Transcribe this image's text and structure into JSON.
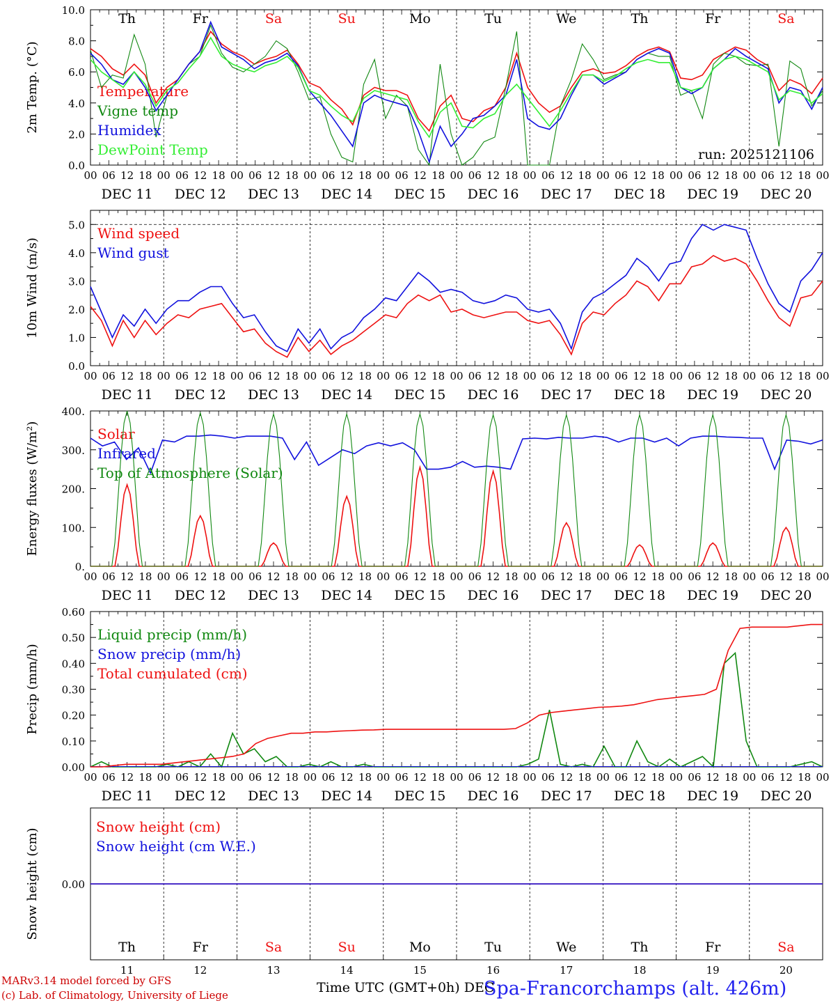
{
  "chart_data": {
    "type": "line",
    "title": "Spa-Francorchamps (alt. 426m)",
    "run": "run: 2025121106",
    "xlabel": "Time UTC (GMT+0h) DEC",
    "credits": [
      "MARv3.14 model forced by GFS",
      "(c) Lab. of Climatology, University of Liege"
    ],
    "hour_ticks": [
      "00",
      "06",
      "12",
      "18"
    ],
    "last_hour_tick": "00",
    "dates": [
      "DEC 11",
      "DEC 12",
      "DEC 13",
      "DEC 14",
      "DEC 15",
      "DEC 16",
      "DEC 17",
      "DEC 18",
      "DEC 19",
      "DEC 20"
    ],
    "day_numbers": [
      "11",
      "12",
      "13",
      "14",
      "15",
      "16",
      "17",
      "18",
      "19",
      "20"
    ],
    "weekdays": [
      "Th",
      "Fr",
      "Sa",
      "Su",
      "Mo",
      "Tu",
      "We",
      "Th",
      "Fr",
      "Sa"
    ],
    "weekend_days": [
      "Sa",
      "Su"
    ],
    "colors": {
      "red": "#ee1111",
      "green": "#118811",
      "blue": "#1111dd",
      "lightgreen": "#33ee33",
      "weekend": "#ee1111"
    },
    "panels": [
      {
        "ylabel": "2m Temp. (°C)",
        "ylim": [
          0,
          10
        ],
        "yticks": [
          0,
          2,
          4,
          6,
          8,
          10
        ],
        "ytick_labels": [
          "0.0",
          "2.0",
          "4.0",
          "6.0",
          "8.0",
          "10.0"
        ],
        "x_hours": [
          0,
          3,
          6,
          9,
          12,
          15,
          18,
          21,
          24,
          27,
          30,
          33,
          36,
          39,
          42,
          45,
          48,
          51,
          54,
          57,
          60,
          63,
          66,
          69,
          72,
          75,
          78,
          81,
          84,
          87,
          90,
          93,
          96,
          99,
          102,
          105,
          108,
          111,
          114,
          117,
          120,
          123,
          126,
          129,
          132,
          135,
          138,
          141,
          144,
          147,
          150,
          153,
          156,
          159,
          162,
          165,
          168,
          171,
          174,
          177,
          180,
          183,
          186,
          189,
          192,
          195,
          198,
          201,
          204,
          207,
          210,
          213,
          216,
          219,
          222,
          225,
          228,
          231,
          234,
          237,
          240
        ],
        "series": [
          {
            "name": "Temperature",
            "color": "#ee1111",
            "values": [
              7.5,
              7.0,
              6.2,
              5.8,
              6.5,
              5.8,
              4.0,
              5.0,
              5.5,
              6.5,
              7.3,
              8.6,
              7.8,
              7.3,
              7.0,
              6.5,
              6.8,
              7.0,
              7.4,
              6.5,
              5.3,
              5.0,
              4.2,
              3.6,
              2.6,
              4.5,
              5.0,
              4.8,
              4.8,
              4.5,
              3.0,
              2.2,
              3.8,
              4.5,
              3.0,
              2.8,
              3.5,
              3.8,
              5.0,
              7.2,
              5.0,
              4.0,
              3.4,
              3.8,
              5.0,
              6.0,
              6.2,
              5.9,
              6.0,
              6.4,
              7.0,
              7.4,
              7.6,
              7.3,
              5.6,
              5.5,
              5.8,
              6.8,
              7.2,
              7.6,
              7.4,
              6.8,
              6.4,
              4.8,
              5.5,
              5.2,
              4.6,
              5.6
            ]
          },
          {
            "name": "Vigne temp",
            "color": "#118811",
            "values": [
              7.4,
              5.0,
              5.8,
              5.6,
              8.4,
              6.5,
              1.8,
              4.5,
              5.5,
              6.5,
              7.0,
              9.0,
              7.2,
              6.3,
              6.0,
              6.5,
              7.0,
              8.0,
              7.5,
              6.0,
              4.2,
              4.4,
              2.0,
              0.5,
              0.2,
              5.2,
              6.8,
              3.0,
              4.5,
              3.8,
              1.0,
              0.0,
              6.5,
              2.0,
              0.0,
              0.5,
              1.5,
              1.8,
              5.0,
              8.6,
              0.0,
              0.0,
              0.0,
              3.8,
              5.5,
              7.8,
              6.8,
              5.5,
              5.8,
              6.0,
              6.8,
              7.2,
              7.0,
              7.0,
              4.5,
              4.8,
              3.0,
              6.5,
              7.2,
              7.0,
              6.5,
              6.4,
              6.5,
              1.2,
              6.7,
              6.2,
              3.8,
              4.8
            ]
          },
          {
            "name": "Humidex",
            "color": "#1111dd",
            "values": [
              7.2,
              6.5,
              5.5,
              5.2,
              6.0,
              5.0,
              3.5,
              4.5,
              5.5,
              6.5,
              7.3,
              9.2,
              7.6,
              7.2,
              6.8,
              6.2,
              6.6,
              6.8,
              7.2,
              6.4,
              4.8,
              4.0,
              3.2,
              2.2,
              1.2,
              4.0,
              4.5,
              4.2,
              4.0,
              3.8,
              2.2,
              0.2,
              2.5,
              1.2,
              2.0,
              3.0,
              3.2,
              3.8,
              4.5,
              6.8,
              3.0,
              2.5,
              2.3,
              3.0,
              4.5,
              5.8,
              5.8,
              5.2,
              5.6,
              6.0,
              6.8,
              7.2,
              7.5,
              7.2,
              5.0,
              4.6,
              5.0,
              6.2,
              6.8,
              7.5,
              7.0,
              6.6,
              6.2,
              4.0,
              5.0,
              4.8,
              3.6,
              5.0
            ]
          },
          {
            "name": "DewPoint Temp",
            "color": "#33ee33",
            "values": [
              6.8,
              6.0,
              5.5,
              5.0,
              6.0,
              5.2,
              3.8,
              4.8,
              5.3,
              6.2,
              7.0,
              8.2,
              7.0,
              6.5,
              6.2,
              6.0,
              6.4,
              6.6,
              7.0,
              6.3,
              4.8,
              4.5,
              3.8,
              3.2,
              2.8,
              4.3,
              4.8,
              4.6,
              4.4,
              4.2,
              2.8,
              1.8,
              3.4,
              4.0,
              2.5,
              2.4,
              3.0,
              3.3,
              4.5,
              5.2,
              4.3,
              3.4,
              2.5,
              3.5,
              4.7,
              5.8,
              5.8,
              5.4,
              5.7,
              6.2,
              6.6,
              6.8,
              6.6,
              6.6,
              5.0,
              4.8,
              5.0,
              6.2,
              6.8,
              7.0,
              6.8,
              6.4,
              6.0,
              4.2,
              4.8,
              4.6,
              4.0,
              4.6
            ]
          }
        ]
      },
      {
        "ylabel": "10m Wind (m/s)",
        "ylim": [
          0,
          5.5
        ],
        "dashed_y": 5,
        "yticks": [
          0,
          1,
          2,
          3,
          4,
          5
        ],
        "ytick_labels": [
          "0.0",
          "1.0",
          "2.0",
          "3.0",
          "4.0",
          "5.0"
        ],
        "series": [
          {
            "name": "Wind speed",
            "color": "#ee1111",
            "values": [
              2.1,
              1.6,
              0.7,
              1.6,
              1.0,
              1.6,
              1.1,
              1.5,
              1.8,
              1.7,
              2.0,
              2.1,
              2.2,
              1.7,
              1.2,
              1.3,
              0.8,
              0.5,
              0.3,
              1.0,
              0.5,
              0.9,
              0.4,
              0.7,
              0.9,
              1.2,
              1.5,
              1.8,
              1.7,
              2.2,
              2.5,
              2.3,
              2.5,
              1.9,
              2.0,
              1.8,
              1.7,
              1.8,
              1.9,
              1.9,
              1.6,
              1.5,
              1.6,
              1.1,
              0.4,
              1.5,
              1.9,
              1.8,
              2.2,
              2.5,
              3.0,
              2.8,
              2.3,
              2.9,
              2.9,
              3.5,
              3.6,
              3.9,
              3.7,
              3.8,
              3.6,
              3.0,
              2.3,
              1.7,
              1.4,
              2.4,
              2.5,
              3.0
            ]
          },
          {
            "name": "Wind gust",
            "color": "#1111dd",
            "values": [
              2.8,
              1.9,
              1.0,
              1.8,
              1.4,
              2.0,
              1.5,
              2.0,
              2.3,
              2.3,
              2.6,
              2.8,
              2.8,
              2.2,
              1.7,
              1.8,
              1.2,
              0.7,
              0.5,
              1.3,
              0.8,
              1.3,
              0.6,
              1.0,
              1.2,
              1.7,
              2.0,
              2.4,
              2.3,
              2.8,
              3.3,
              3.0,
              2.6,
              2.7,
              2.6,
              2.3,
              2.2,
              2.3,
              2.5,
              2.4,
              2.0,
              1.9,
              2.0,
              1.5,
              0.6,
              1.9,
              2.4,
              2.6,
              2.9,
              3.2,
              3.8,
              3.5,
              3.0,
              3.6,
              3.7,
              4.5,
              5.0,
              4.8,
              5.0,
              4.9,
              4.8,
              3.8,
              2.9,
              2.2,
              1.9,
              3.0,
              3.4,
              4.0
            ]
          }
        ]
      },
      {
        "ylabel": "Energy fluxes (W/m²)",
        "ylim": [
          0,
          400
        ],
        "yticks": [
          0,
          100,
          200,
          300,
          400
        ],
        "ytick_labels": [
          "0.",
          "100.",
          "200.",
          "300.",
          "400."
        ],
        "series": [
          {
            "name": "Solar",
            "color": "#ee1111",
            "peaks": [
              210,
              130,
              60,
              180,
              255,
              245,
              112,
              55,
              60,
              100
            ]
          },
          {
            "name": "Infrared",
            "color": "#1111dd",
            "values": [
              330,
              310,
              320,
              275,
              305,
              240,
              325,
              320,
              335,
              335,
              338,
              335,
              330,
              335,
              335,
              335,
              330,
              275,
              320,
              260,
              280,
              300,
              290,
              310,
              318,
              310,
              318,
              300,
              250,
              250,
              255,
              270,
              255,
              258,
              255,
              250,
              328,
              330,
              328,
              332,
              330,
              330,
              335,
              332,
              320,
              330,
              330,
              320,
              330,
              310,
              330,
              335,
              335,
              333,
              332,
              330,
              330,
              250,
              325,
              322,
              315,
              325
            ]
          },
          {
            "name": "Top of Atmosphere (Solar)",
            "color": "#118811",
            "peaks": [
              400,
              395,
              392,
              392,
              392,
              390,
              390,
              390,
              390,
              390
            ]
          }
        ]
      },
      {
        "ylabel": "Precip (mm/h)",
        "ylim": [
          0,
          0.6
        ],
        "yticks": [
          0,
          0.1,
          0.2,
          0.3,
          0.4,
          0.5,
          0.6
        ],
        "ytick_labels": [
          "0.00",
          "0.10",
          "0.20",
          "0.30",
          "0.40",
          "0.50",
          "0.60"
        ],
        "series": [
          {
            "name": "Liquid precip (mm/h)",
            "color": "#118811",
            "values": [
              0.0,
              0.02,
              0.0,
              0.0,
              0.0,
              0.0,
              0.0,
              0.01,
              0.0,
              0.02,
              0.0,
              0.05,
              0.0,
              0.13,
              0.05,
              0.07,
              0.02,
              0.04,
              0.0,
              0.0,
              0.01,
              0.0,
              0.02,
              0.0,
              0.0,
              0.01,
              0.0,
              0.0,
              0.0,
              0.0,
              0.0,
              0.0,
              0.0,
              0.0,
              0.0,
              0.0,
              0.0,
              0.0,
              0.0,
              0.0,
              0.01,
              0.03,
              0.22,
              0.01,
              0.0,
              0.01,
              0.0,
              0.08,
              0.0,
              0.0,
              0.1,
              0.02,
              0.0,
              0.03,
              0.0,
              0.02,
              0.04,
              0.0,
              0.4,
              0.44,
              0.1,
              0.0,
              0.0,
              0.0,
              0.0,
              0.01,
              0.02,
              0.0
            ]
          },
          {
            "name": "Snow precip (mm/h)",
            "color": "#1111dd",
            "values": []
          },
          {
            "name": "Total cumulated (cm)",
            "color": "#ee1111",
            "values": [
              0.0,
              0.0,
              0.005,
              0.01,
              0.01,
              0.01,
              0.01,
              0.015,
              0.02,
              0.025,
              0.03,
              0.035,
              0.04,
              0.05,
              0.09,
              0.11,
              0.12,
              0.13,
              0.13,
              0.135,
              0.135,
              0.138,
              0.14,
              0.142,
              0.143,
              0.145,
              0.145,
              0.145,
              0.145,
              0.145,
              0.145,
              0.145,
              0.145,
              0.145,
              0.145,
              0.145,
              0.148,
              0.17,
              0.2,
              0.21,
              0.215,
              0.22,
              0.225,
              0.23,
              0.232,
              0.235,
              0.24,
              0.25,
              0.26,
              0.265,
              0.27,
              0.275,
              0.28,
              0.3,
              0.45,
              0.535,
              0.54,
              0.54,
              0.54,
              0.54,
              0.545,
              0.55,
              0.55
            ]
          }
        ]
      },
      {
        "ylabel": "Snow height (cm)",
        "ylim": [
          -1,
          1
        ],
        "yticks": [
          0
        ],
        "ytick_labels": [
          "0.00"
        ],
        "series": [
          {
            "name": "Snow height (cm)",
            "color": "#ee1111",
            "values": [
              0,
              0
            ]
          },
          {
            "name": "Snow height (cm W.E.)",
            "color": "#1111dd",
            "values": [
              0,
              0
            ]
          }
        ]
      }
    ]
  }
}
